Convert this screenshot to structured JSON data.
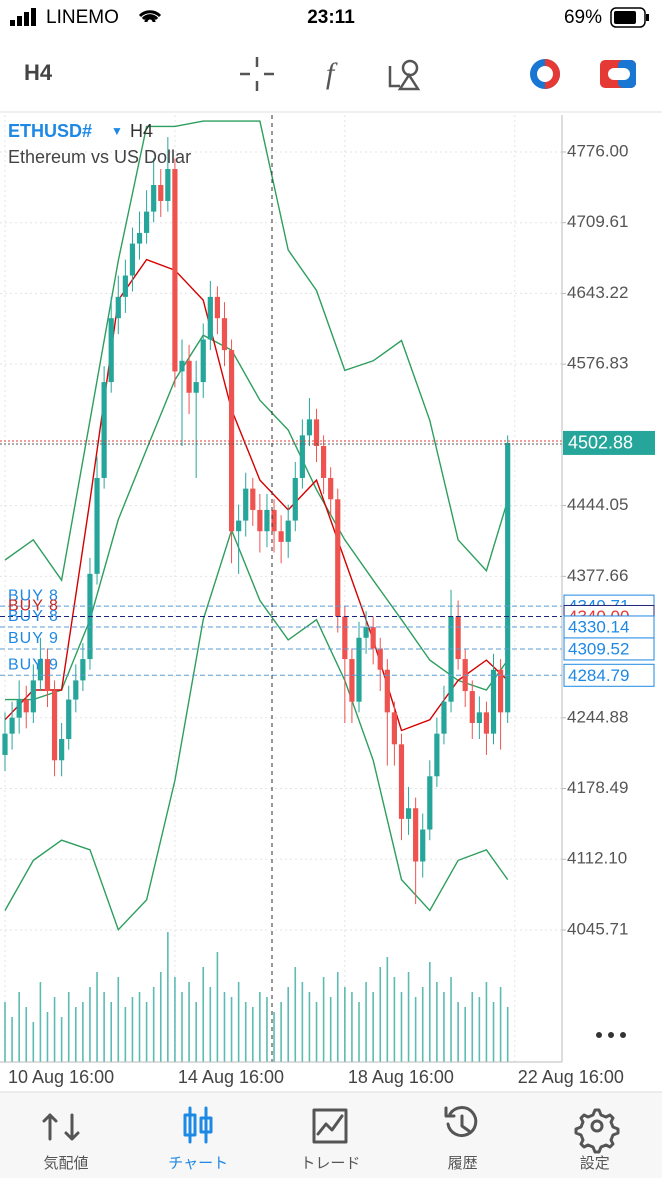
{
  "status_bar": {
    "carrier": "LINEMO",
    "time": "23:11",
    "battery": "69%"
  },
  "toolbar": {
    "timeframe": "H4"
  },
  "chart_data": {
    "type": "candlestick",
    "symbol": "ETHUSD#",
    "symbol_arrow": "▼",
    "timeframe": "H4",
    "subtitle": "Ethereum vs US Dollar",
    "ylim": [
      3921.8,
      4810.7
    ],
    "yticks": [
      {
        "value": 4776,
        "label": "4776.00"
      },
      4709.61,
      4643.22,
      4576.83,
      4444.05,
      4377.66,
      4244.88,
      4178.49,
      {
        "value": 4112.1,
        "label": "4112.10"
      },
      4045.71
    ],
    "xticks": [
      {
        "value": 0,
        "label": "10 Aug 16:00"
      },
      {
        "value": 24,
        "label": "14 Aug 16:00"
      },
      {
        "value": 48,
        "label": "18 Aug 16:00"
      },
      {
        "value": 72,
        "label": "22 Aug 16:00"
      }
    ],
    "grid": true,
    "up_color": "#26a69a",
    "down_color": "#ef5350",
    "candles": {
      "open": [
        4210,
        4230,
        4245,
        4262,
        4250,
        4280,
        4300,
        4270,
        4205,
        4225,
        4262,
        4280,
        4300,
        4380,
        4470,
        4560,
        4620,
        4640,
        4660,
        4690,
        4700,
        4720,
        4745,
        4730,
        4760,
        4570,
        4580,
        4550,
        4560,
        4600,
        4640,
        4620,
        4590,
        4420,
        4430,
        4460,
        4440,
        4420,
        4440,
        4420,
        4410,
        4430,
        4470,
        4510,
        4525,
        4500,
        4470,
        4450,
        4340,
        4300,
        4260,
        4320,
        4330,
        4310,
        4290,
        4250,
        4220,
        4150,
        4160,
        4110,
        4140,
        4190,
        4230,
        4260,
        4340,
        4300,
        4270,
        4240,
        4250,
        4230,
        4290,
        4250
      ],
      "high": [
        4250,
        4260,
        4280,
        4275,
        4295,
        4320,
        4310,
        4280,
        4240,
        4275,
        4295,
        4315,
        4395,
        4490,
        4575,
        4640,
        4660,
        4675,
        4705,
        4720,
        4740,
        4770,
        4760,
        4790,
        4770,
        4600,
        4595,
        4580,
        4615,
        4655,
        4650,
        4635,
        4600,
        4445,
        4475,
        4470,
        4455,
        4455,
        4450,
        4435,
        4445,
        4485,
        4525,
        4545,
        4535,
        4510,
        4480,
        4460,
        4350,
        4310,
        4335,
        4345,
        4340,
        4320,
        4300,
        4260,
        4230,
        4180,
        4170,
        4155,
        4205,
        4245,
        4275,
        4365,
        4355,
        4310,
        4280,
        4265,
        4260,
        4305,
        4300,
        4510
      ],
      "low": [
        4195,
        4215,
        4230,
        4235,
        4240,
        4270,
        4255,
        4190,
        4190,
        4215,
        4250,
        4270,
        4290,
        4370,
        4460,
        4550,
        4605,
        4625,
        4645,
        4675,
        4690,
        4710,
        4715,
        4720,
        4555,
        4500,
        4530,
        4470,
        4545,
        4590,
        4605,
        4575,
        4390,
        4380,
        4415,
        4425,
        4400,
        4405,
        4400,
        4390,
        4395,
        4420,
        4460,
        4500,
        4485,
        4455,
        4435,
        4325,
        4240,
        4240,
        4250,
        4305,
        4295,
        4270,
        4200,
        4200,
        4130,
        4135,
        4070,
        4095,
        4130,
        4180,
        4220,
        4250,
        4290,
        4255,
        4225,
        4225,
        4210,
        4220,
        4215,
        4240
      ],
      "close": [
        4230,
        4245,
        4262,
        4250,
        4280,
        4300,
        4270,
        4205,
        4225,
        4262,
        4280,
        4300,
        4380,
        4470,
        4560,
        4620,
        4640,
        4660,
        4690,
        4700,
        4720,
        4745,
        4730,
        4760,
        4570,
        4580,
        4550,
        4560,
        4600,
        4640,
        4620,
        4590,
        4420,
        4430,
        4460,
        4440,
        4420,
        4440,
        4420,
        4410,
        4430,
        4470,
        4510,
        4525,
        4500,
        4470,
        4450,
        4340,
        4300,
        4260,
        4320,
        4330,
        4310,
        4290,
        4250,
        4220,
        4150,
        4160,
        4110,
        4140,
        4190,
        4230,
        4260,
        4340,
        4300,
        4270,
        4240,
        4250,
        4230,
        4290,
        4250,
        4502.88
      ]
    },
    "volume": [
      60,
      45,
      70,
      55,
      40,
      80,
      50,
      65,
      45,
      70,
      55,
      60,
      75,
      90,
      70,
      60,
      85,
      55,
      65,
      70,
      60,
      75,
      90,
      130,
      85,
      70,
      80,
      60,
      95,
      75,
      110,
      70,
      65,
      80,
      60,
      55,
      70,
      65,
      50,
      60,
      75,
      95,
      80,
      70,
      60,
      85,
      65,
      90,
      75,
      70,
      60,
      80,
      70,
      95,
      105,
      85,
      70,
      90,
      65,
      75,
      100,
      80,
      70,
      85,
      60,
      55,
      70,
      65,
      80,
      60,
      75,
      55
    ],
    "volume_lim": [
      0,
      150
    ],
    "volume_color": "#26a69a",
    "line_x": [
      0,
      4,
      8,
      12,
      16,
      20,
      24,
      28,
      32,
      36,
      40,
      44,
      48,
      52,
      56,
      60,
      64,
      68,
      71
    ],
    "lines": [
      {
        "color": "#2e9e5e",
        "values": [
          4393,
          4412,
          4374,
          4524,
          4674,
          4800,
          4800,
          4805,
          4805,
          4805,
          4684,
          4646,
          4571,
          4580,
          4599,
          4524,
          4412,
          4383,
          4449
        ]
      },
      {
        "color": "#2e9e5e",
        "values": [
          4262,
          4262,
          4271,
          4337,
          4431,
          4497,
          4562,
          4604,
          4590,
          4543,
          4515,
          4459,
          4412,
          4374,
          4337,
          4299,
          4280,
          4271,
          4299
        ]
      },
      {
        "color": "#2e9e5e",
        "values": [
          4064,
          4111,
          4130,
          4121,
          4046,
          4074,
          4186,
          4337,
          4421,
          4355,
          4318,
          4337,
          4280,
          4205,
          4093,
          4064,
          4111,
          4121,
          4093
        ]
      },
      {
        "color": "#d50000",
        "values": [
          4243,
          4271,
          4271,
          4449,
          4637,
          4675,
          4665,
          4637,
          4534,
          4468,
          4440,
          4468,
          4393,
          4318,
          4233,
          4243,
          4280,
          4299,
          4280
        ]
      }
    ],
    "levels": [
      {
        "label": "BUY 8",
        "price": 4349.71,
        "color": "#5b9bd5"
      },
      {
        "label": "BUY 8",
        "price": 4340,
        "tag": "4340.00",
        "color": "#1a237e",
        "tag_color": "#e53935"
      },
      {
        "label": "BUY 8",
        "price": 4330.14,
        "color": "#5b9bd5"
      },
      {
        "label": "BUY 9",
        "price": 4309.52,
        "color": "#5b9bd5"
      },
      {
        "label": "BUY 9",
        "price": 4284.79,
        "color": "#5b9bd5"
      }
    ],
    "current_price": {
      "price": 4502.88,
      "color": "#26a69a"
    }
  },
  "tab_bar": {
    "tabs": [
      "気配値",
      "チャート",
      "トレード",
      "履歴",
      "設定"
    ],
    "active": 1
  }
}
